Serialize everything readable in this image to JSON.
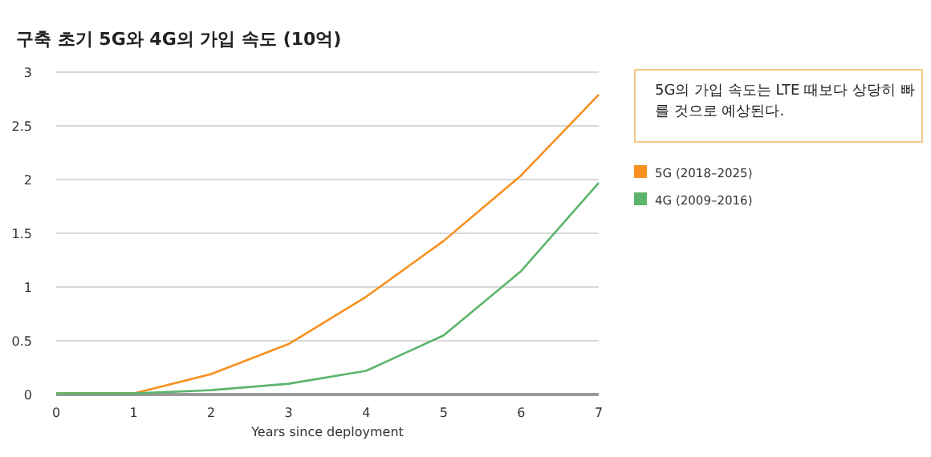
{
  "chart_data": {
    "type": "line",
    "title": "구축 초기 5G와 4G의 가입 속도 (10억)",
    "xlabel": "Years since deployment",
    "x": [
      0,
      1,
      2,
      3,
      4,
      5,
      6,
      7
    ],
    "series": [
      {
        "name": "5G (2018–2025)",
        "color": "#f7901e",
        "values": [
          0.01,
          0.01,
          0.19,
          0.47,
          0.91,
          1.43,
          2.04,
          2.79
        ]
      },
      {
        "name": "4G (2009–2016)",
        "color": "#5cb56b",
        "values": [
          0.01,
          0.01,
          0.04,
          0.1,
          0.22,
          0.55,
          1.15,
          1.97
        ]
      }
    ],
    "xlim": [
      0,
      7
    ],
    "xticks": [
      0,
      1,
      2,
      3,
      4,
      5,
      6,
      7
    ],
    "ylim": [
      0,
      3
    ],
    "yticks": [
      0,
      0.5,
      1,
      1.5,
      2,
      2.5,
      3
    ],
    "grid": "y",
    "legend": "right",
    "marker": "none",
    "line_style": "solid",
    "annotations": [
      "5G의 가입 속도는 LTE 때보다 상당히 빠를 것으로 예상된다."
    ]
  }
}
